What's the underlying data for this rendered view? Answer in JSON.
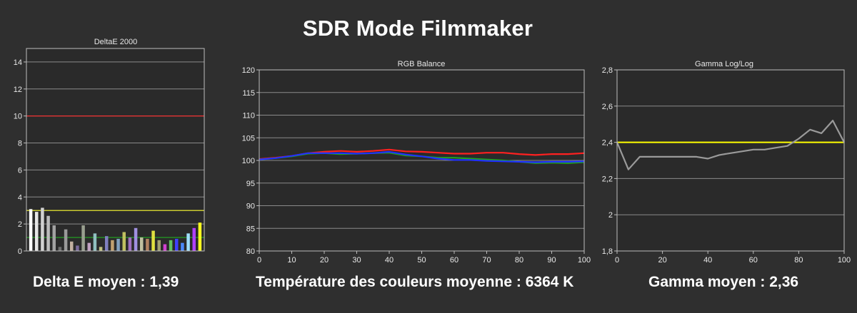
{
  "page": {
    "title": "SDR Mode Filmmaker",
    "captions": [
      "Delta E moyen : 1,39",
      "Température des couleurs moyenne : 6364 K",
      "Gamma moyen : 2,36"
    ]
  },
  "chart_data": [
    {
      "type": "bar",
      "title": "DeltaE 2000",
      "ylim": [
        0,
        15
      ],
      "yticks": [
        "0",
        "2",
        "4",
        "6",
        "8",
        "10",
        "12",
        "14"
      ],
      "grid": true,
      "reference_lines": [
        {
          "value": 10,
          "color": "#ff2a2a"
        },
        {
          "value": 3,
          "color": "#ffff33"
        },
        {
          "value": 1,
          "color": "#22aa22"
        }
      ],
      "values": [
        3.1,
        2.9,
        3.2,
        2.6,
        1.9,
        0.3,
        1.6,
        0.7,
        0.4,
        1.9,
        0.6,
        1.3,
        0.3,
        1.1,
        0.8,
        0.9,
        1.4,
        1.0,
        1.7,
        1.0,
        0.9,
        1.5,
        0.8,
        0.5,
        0.8,
        0.9,
        0.6,
        1.3,
        1.7,
        2.1
      ],
      "colors": [
        "#ffffff",
        "#e6e6e6",
        "#d2d2d2",
        "#bcbcbc",
        "#a2a2a2",
        "#6e6e6e",
        "#9a9a9a",
        "#c2b0a0",
        "#7a6a9a",
        "#9aa090",
        "#c0a0c0",
        "#90c0c0",
        "#c0c080",
        "#8080c0",
        "#c0a070",
        "#80a0c0",
        "#c0c060",
        "#a070c0",
        "#a090e0",
        "#c0c0a0",
        "#b08060",
        "#e0e040",
        "#a0a070",
        "#d040d0",
        "#60c060",
        "#4040ff",
        "#4a8aff",
        "#a0e0ff",
        "#b040ff",
        "#ffff20"
      ]
    },
    {
      "type": "line",
      "title": "RGB Balance",
      "xlim": [
        0,
        100
      ],
      "ylim": [
        80,
        120
      ],
      "xticks": [
        "0",
        "10",
        "20",
        "30",
        "40",
        "50",
        "60",
        "70",
        "80",
        "90",
        "100"
      ],
      "yticks": [
        "80",
        "85",
        "90",
        "95",
        "100",
        "105",
        "110",
        "115",
        "120"
      ],
      "grid": true,
      "x": [
        0,
        5,
        10,
        15,
        20,
        25,
        30,
        35,
        40,
        45,
        50,
        55,
        60,
        65,
        70,
        75,
        80,
        85,
        90,
        95,
        100
      ],
      "series": [
        {
          "color": "#ff2020",
          "values": [
            100.3,
            100.6,
            101.0,
            101.6,
            101.9,
            102.1,
            101.9,
            102.1,
            102.4,
            102.0,
            101.9,
            101.7,
            101.5,
            101.5,
            101.7,
            101.7,
            101.4,
            101.2,
            101.4,
            101.4,
            101.6
          ]
        },
        {
          "color": "#20a020",
          "values": [
            100.2,
            100.5,
            100.9,
            101.5,
            101.6,
            101.4,
            101.5,
            101.6,
            101.7,
            101.1,
            100.9,
            100.6,
            100.6,
            100.4,
            100.2,
            100.0,
            99.7,
            99.4,
            99.5,
            99.4,
            99.6
          ]
        },
        {
          "color": "#2030ff",
          "values": [
            100.2,
            100.5,
            101.0,
            101.6,
            101.6,
            101.6,
            101.5,
            101.6,
            101.9,
            101.3,
            100.9,
            100.4,
            100.1,
            100.1,
            99.9,
            99.8,
            99.7,
            99.6,
            99.7,
            99.7,
            99.8
          ]
        }
      ]
    },
    {
      "type": "line",
      "title": "Gamma Log/Log",
      "xlim": [
        0,
        100
      ],
      "ylim": [
        1.8,
        2.8
      ],
      "xticks": [
        "0",
        "20",
        "40",
        "60",
        "80",
        "100"
      ],
      "yticks": [
        "1,8",
        "2",
        "2,2",
        "2,4",
        "2,6",
        "2,8"
      ],
      "grid": true,
      "reference_line": {
        "value": 2.4,
        "color": "#ffff00"
      },
      "x": [
        0,
        5,
        10,
        15,
        20,
        25,
        30,
        35,
        40,
        45,
        50,
        55,
        60,
        65,
        70,
        75,
        80,
        85,
        90,
        95,
        100
      ],
      "series": [
        {
          "color": "#9a9a9a",
          "values": [
            2.4,
            2.25,
            2.32,
            2.32,
            2.32,
            2.32,
            2.32,
            2.32,
            2.31,
            2.33,
            2.34,
            2.35,
            2.36,
            2.36,
            2.37,
            2.38,
            2.42,
            2.47,
            2.45,
            2.52,
            2.4
          ]
        }
      ]
    }
  ]
}
